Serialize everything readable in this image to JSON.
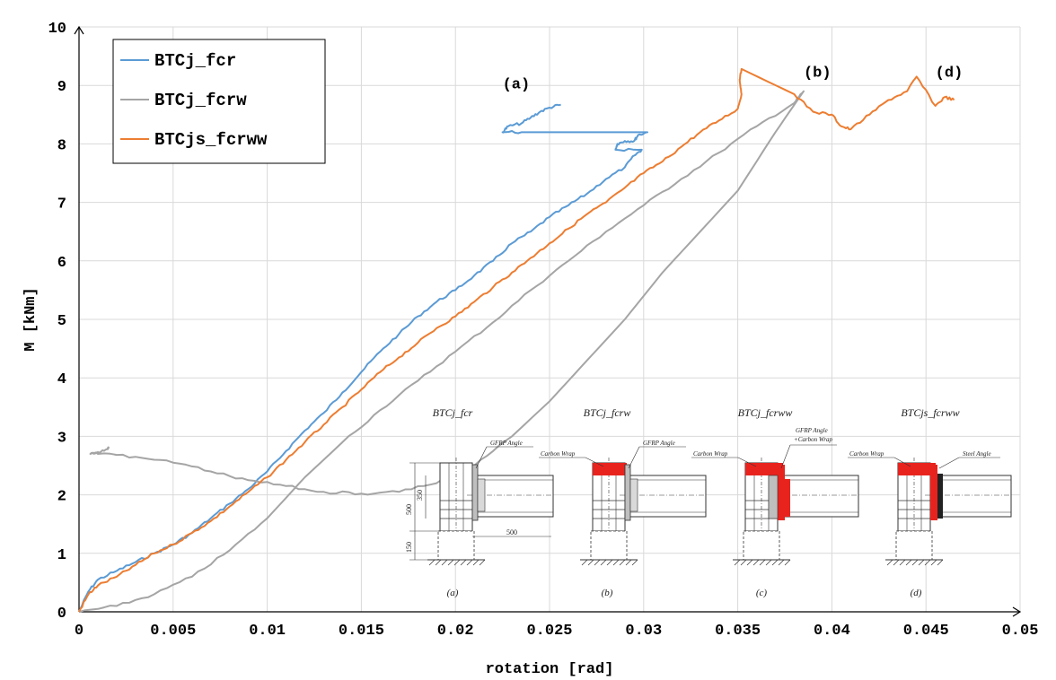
{
  "chart_data": {
    "type": "line",
    "title": "",
    "xlabel": "rotation [rad]",
    "ylabel": "M [kNm]",
    "xlim": [
      0,
      0.05
    ],
    "ylim": [
      0,
      10
    ],
    "x_ticks": [
      "0",
      "0.005",
      "0.01",
      "0.015",
      "0.02",
      "0.025",
      "0.03",
      "0.035",
      "0.04",
      "0.045",
      "0.05"
    ],
    "y_ticks": [
      "0",
      "1",
      "2",
      "3",
      "4",
      "5",
      "6",
      "7",
      "8",
      "9",
      "10"
    ],
    "grid": true,
    "legend_position": "top-left",
    "series": [
      {
        "name": "BTCj_fcr",
        "color": "#5b9bd5",
        "points": [
          [
            0,
            0
          ],
          [
            0.0005,
            0.35
          ],
          [
            0.001,
            0.55
          ],
          [
            0.002,
            0.7
          ],
          [
            0.003,
            0.85
          ],
          [
            0.004,
            1.0
          ],
          [
            0.005,
            1.15
          ],
          [
            0.006,
            1.35
          ],
          [
            0.007,
            1.6
          ],
          [
            0.008,
            1.85
          ],
          [
            0.009,
            2.1
          ],
          [
            0.01,
            2.4
          ],
          [
            0.011,
            2.75
          ],
          [
            0.012,
            3.1
          ],
          [
            0.013,
            3.4
          ],
          [
            0.014,
            3.75
          ],
          [
            0.015,
            4.1
          ],
          [
            0.016,
            4.45
          ],
          [
            0.017,
            4.75
          ],
          [
            0.018,
            5.05
          ],
          [
            0.019,
            5.3
          ],
          [
            0.02,
            5.5
          ],
          [
            0.021,
            5.75
          ],
          [
            0.022,
            6.0
          ],
          [
            0.023,
            6.3
          ],
          [
            0.024,
            6.5
          ],
          [
            0.025,
            6.75
          ],
          [
            0.026,
            6.95
          ],
          [
            0.027,
            7.15
          ],
          [
            0.028,
            7.4
          ],
          [
            0.029,
            7.6
          ],
          [
            0.0295,
            7.8
          ],
          [
            0.0299,
            7.9
          ],
          [
            0.0285,
            7.9
          ],
          [
            0.0286,
            8.0
          ],
          [
            0.029,
            8.05
          ],
          [
            0.0295,
            8.05
          ],
          [
            0.0297,
            8.15
          ],
          [
            0.0302,
            8.2
          ],
          [
            0.0235,
            8.2
          ],
          [
            0.0225,
            8.2
          ],
          [
            0.0228,
            8.3
          ],
          [
            0.0235,
            8.35
          ],
          [
            0.024,
            8.45
          ],
          [
            0.0245,
            8.55
          ],
          [
            0.025,
            8.62
          ],
          [
            0.0256,
            8.67
          ]
        ]
      },
      {
        "name": "BTCj_fcrw",
        "color": "#a5a5a5",
        "points": [
          [
            0,
            0
          ],
          [
            0.002,
            0.1
          ],
          [
            0.004,
            0.3
          ],
          [
            0.006,
            0.6
          ],
          [
            0.008,
            1.05
          ],
          [
            0.01,
            1.6
          ],
          [
            0.012,
            2.3
          ],
          [
            0.014,
            2.9
          ],
          [
            0.016,
            3.45
          ],
          [
            0.018,
            3.95
          ],
          [
            0.02,
            4.45
          ],
          [
            0.022,
            4.95
          ],
          [
            0.024,
            5.5
          ],
          [
            0.026,
            6.0
          ],
          [
            0.028,
            6.5
          ],
          [
            0.03,
            6.95
          ],
          [
            0.032,
            7.4
          ],
          [
            0.034,
            7.85
          ],
          [
            0.036,
            8.3
          ],
          [
            0.038,
            8.7
          ],
          [
            0.0385,
            8.9
          ],
          [
            0.037,
            8.2
          ],
          [
            0.035,
            7.2
          ],
          [
            0.033,
            6.5
          ],
          [
            0.031,
            5.8
          ],
          [
            0.029,
            5.0
          ],
          [
            0.027,
            4.3
          ],
          [
            0.025,
            3.6
          ],
          [
            0.023,
            3.0
          ],
          [
            0.021,
            2.5
          ],
          [
            0.019,
            2.2
          ],
          [
            0.017,
            2.05
          ],
          [
            0.015,
            2.02
          ],
          [
            0.013,
            2.05
          ],
          [
            0.011,
            2.15
          ],
          [
            0.009,
            2.25
          ],
          [
            0.007,
            2.4
          ],
          [
            0.005,
            2.55
          ],
          [
            0.003,
            2.65
          ],
          [
            0.001,
            2.7
          ],
          [
            0.0006,
            2.7
          ],
          [
            0.001,
            2.73
          ],
          [
            0.0015,
            2.78
          ],
          [
            0.0016,
            2.82
          ]
        ]
      },
      {
        "name": "BTCjs_fcrww",
        "color": "#ed7d31",
        "points": [
          [
            0,
            0
          ],
          [
            0.0005,
            0.3
          ],
          [
            0.001,
            0.45
          ],
          [
            0.002,
            0.6
          ],
          [
            0.003,
            0.8
          ],
          [
            0.004,
            1.0
          ],
          [
            0.005,
            1.15
          ],
          [
            0.006,
            1.35
          ],
          [
            0.007,
            1.55
          ],
          [
            0.008,
            1.8
          ],
          [
            0.009,
            2.05
          ],
          [
            0.01,
            2.3
          ],
          [
            0.011,
            2.6
          ],
          [
            0.012,
            2.9
          ],
          [
            0.013,
            3.2
          ],
          [
            0.014,
            3.5
          ],
          [
            0.015,
            3.8
          ],
          [
            0.016,
            4.1
          ],
          [
            0.017,
            4.35
          ],
          [
            0.018,
            4.6
          ],
          [
            0.019,
            4.85
          ],
          [
            0.02,
            5.05
          ],
          [
            0.021,
            5.3
          ],
          [
            0.022,
            5.55
          ],
          [
            0.023,
            5.8
          ],
          [
            0.024,
            6.05
          ],
          [
            0.025,
            6.3
          ],
          [
            0.026,
            6.55
          ],
          [
            0.027,
            6.8
          ],
          [
            0.028,
            7.0
          ],
          [
            0.029,
            7.25
          ],
          [
            0.03,
            7.5
          ],
          [
            0.031,
            7.7
          ],
          [
            0.032,
            7.95
          ],
          [
            0.033,
            8.2
          ],
          [
            0.034,
            8.4
          ],
          [
            0.035,
            8.6
          ],
          [
            0.0352,
            8.85
          ],
          [
            0.0351,
            9.1
          ],
          [
            0.0352,
            9.28
          ],
          [
            0.038,
            8.85
          ],
          [
            0.039,
            8.55
          ],
          [
            0.04,
            8.5
          ],
          [
            0.0405,
            8.3
          ],
          [
            0.041,
            8.25
          ],
          [
            0.042,
            8.5
          ],
          [
            0.043,
            8.75
          ],
          [
            0.044,
            8.9
          ],
          [
            0.0445,
            9.15
          ],
          [
            0.0455,
            8.65
          ],
          [
            0.046,
            8.8
          ],
          [
            0.0465,
            8.75
          ]
        ]
      }
    ],
    "annotations": [
      {
        "label": "(a)",
        "x": 0.0225,
        "y": 8.95
      },
      {
        "label": "(b)",
        "x": 0.0385,
        "y": 9.15
      },
      {
        "label": "(d)",
        "x": 0.0455,
        "y": 9.15
      }
    ],
    "inset": {
      "panel_titles": [
        "BTCj_fcr",
        "BTCj_fcrw",
        "BTCj_fcrww",
        "BTCjs_fcrww"
      ],
      "panel_captions": [
        "(a)",
        "(b)",
        "(c)",
        "(d)"
      ],
      "callouts_a": [
        "GFRP Angle"
      ],
      "callouts_b": [
        "Carbon Wrap",
        "GFRP Angle"
      ],
      "callouts_c": [
        "Carbon Wrap",
        "GFRP Angle",
        "+Carbon Wrap"
      ],
      "callouts_d": [
        "Carbon Wrap",
        "Steel Angle"
      ],
      "dimensions": [
        "500",
        "350",
        "150",
        "500"
      ],
      "wrap_color": "#e8231e"
    }
  }
}
